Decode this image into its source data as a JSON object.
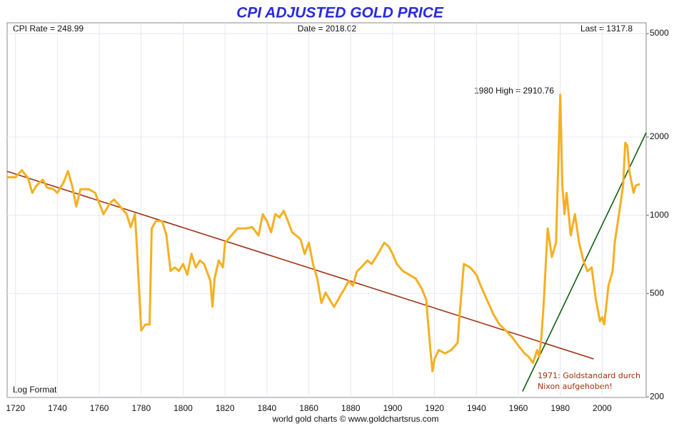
{
  "chart_data": {
    "type": "line",
    "title": "CPI ADJUSTED GOLD PRICE",
    "header_left": "CPI Rate = 248.99",
    "header_center": "Date = 2018.02",
    "header_right": "Last = 1317.8",
    "scale_label": "Log Format",
    "footer": "world gold charts © www.goldchartsrus.com",
    "annotations": [
      "1980 High = 2910.76",
      "1971: Goldstandard durch",
      "Nixon aufgehoben!"
    ],
    "log_y": true,
    "grid": true,
    "xlim": [
      1716,
      2021
    ],
    "ylim": [
      199,
      5500
    ],
    "xticks": [
      1720,
      1740,
      1760,
      1780,
      1800,
      1820,
      1840,
      1860,
      1880,
      1900,
      1920,
      1940,
      1960,
      1980,
      2000
    ],
    "yticks": [
      200,
      500,
      1000,
      2000,
      5000
    ],
    "series": [
      {
        "name": "CPI adjusted gold price",
        "color": "#f5b020",
        "x": [
          1716,
          1720,
          1723,
          1726,
          1728,
          1730,
          1733,
          1735,
          1738,
          1740,
          1743,
          1745,
          1747,
          1749,
          1751,
          1755,
          1758,
          1760,
          1762,
          1765,
          1767,
          1770,
          1773,
          1775,
          1777,
          1778,
          1780,
          1782,
          1784,
          1785,
          1787,
          1790,
          1792,
          1794,
          1796,
          1798,
          1800,
          1802,
          1804,
          1806,
          1808,
          1810,
          1813,
          1814,
          1815,
          1817,
          1819,
          1820,
          1823,
          1826,
          1830,
          1833,
          1836,
          1838,
          1840,
          1842,
          1844,
          1846,
          1848,
          1850,
          1852,
          1856,
          1858,
          1860,
          1862,
          1864,
          1866,
          1868,
          1870,
          1872,
          1875,
          1877,
          1879,
          1881,
          1883,
          1885,
          1888,
          1890,
          1893,
          1896,
          1898,
          1900,
          1902,
          1905,
          1908,
          1911,
          1914,
          1916,
          1918,
          1919,
          1920,
          1922,
          1925,
          1928,
          1931,
          1932,
          1934,
          1937,
          1940,
          1942,
          1945,
          1948,
          1951,
          1954,
          1957,
          1960,
          1963,
          1965,
          1967,
          1969,
          1970,
          1971,
          1972,
          1974,
          1976,
          1978,
          1980,
          1981,
          1982,
          1983,
          1985,
          1987,
          1989,
          1991,
          1993,
          1995,
          1997,
          1999,
          2000,
          2001,
          2003,
          2005,
          2006,
          2008,
          2010,
          2011,
          2012,
          2013,
          2015,
          2016,
          2018
        ],
        "values": [
          1400,
          1400,
          1490,
          1390,
          1220,
          1300,
          1370,
          1280,
          1260,
          1220,
          1340,
          1480,
          1300,
          1080,
          1260,
          1260,
          1220,
          1110,
          1010,
          1110,
          1150,
          1080,
          1010,
          900,
          1010,
          740,
          360,
          380,
          380,
          890,
          950,
          950,
          840,
          610,
          630,
          610,
          650,
          590,
          710,
          630,
          670,
          650,
          560,
          445,
          570,
          670,
          630,
          784,
          836,
          890,
          890,
          900,
          836,
          1010,
          950,
          860,
          1010,
          980,
          1040,
          950,
          860,
          810,
          710,
          784,
          649,
          571,
          460,
          504,
          473,
          444,
          490,
          520,
          560,
          536,
          609,
          630,
          670,
          650,
          710,
          784,
          760,
          710,
          649,
          609,
          590,
          571,
          520,
          473,
          303,
          251,
          280,
          303,
          294,
          303,
          323,
          417,
          649,
          630,
          590,
          536,
          473,
          417,
          380,
          360,
          340,
          315,
          294,
          285,
          270,
          303,
          285,
          340,
          444,
          890,
          691,
          784,
          2910.76,
          1300,
          1010,
          1220,
          836,
          1010,
          784,
          670,
          609,
          630,
          473,
          391,
          405,
          380,
          536,
          609,
          784,
          1010,
          1300,
          1900,
          1850,
          1476,
          1220,
          1300,
          1317.8
        ]
      }
    ],
    "trend_lines": [
      {
        "color": "#a03010",
        "x": [
          1716,
          1996
        ],
        "values": [
          1476,
          280
        ]
      },
      {
        "color": "#106010",
        "x": [
          1962,
          2021
        ],
        "values": [
          210,
          2078
        ]
      }
    ]
  }
}
